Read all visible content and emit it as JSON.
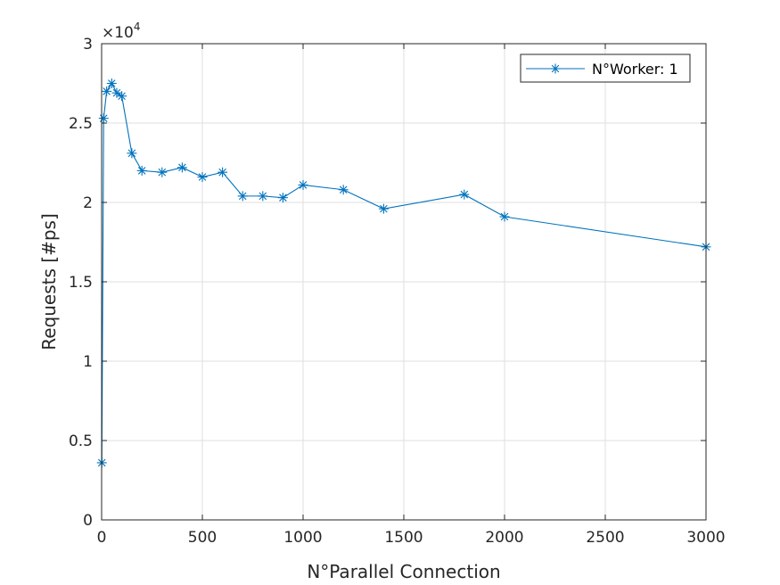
{
  "chart_data": {
    "type": "line",
    "title": "",
    "xlabel": "N°Parallel Connection",
    "ylabel": "Requests [#ps]",
    "xlim": [
      0,
      3000
    ],
    "ylim": [
      0,
      30000
    ],
    "x_ticks": [
      0,
      500,
      1000,
      1500,
      2000,
      2500,
      3000
    ],
    "y_ticks": [
      0,
      5000,
      10000,
      15000,
      20000,
      25000,
      30000
    ],
    "y_tick_labels": [
      "0",
      "0.5",
      "1",
      "1.5",
      "2",
      "2.5",
      "3"
    ],
    "y_exponent_base": "×10",
    "y_exponent_power": "4",
    "grid": true,
    "legend_position": "top-right",
    "series_color": "#0072BD",
    "series": [
      {
        "name": "N°Worker: 1",
        "marker": "asterisk",
        "x": [
          1,
          10,
          25,
          50,
          75,
          100,
          150,
          200,
          300,
          400,
          500,
          600,
          700,
          800,
          900,
          1000,
          1200,
          1400,
          1800,
          2000,
          3000
        ],
        "y": [
          3600,
          25300,
          27000,
          27500,
          26900,
          26700,
          23100,
          22000,
          21900,
          22200,
          21600,
          21900,
          20400,
          20400,
          20300,
          21100,
          20800,
          19600,
          20500,
          19100,
          17200
        ]
      }
    ]
  }
}
